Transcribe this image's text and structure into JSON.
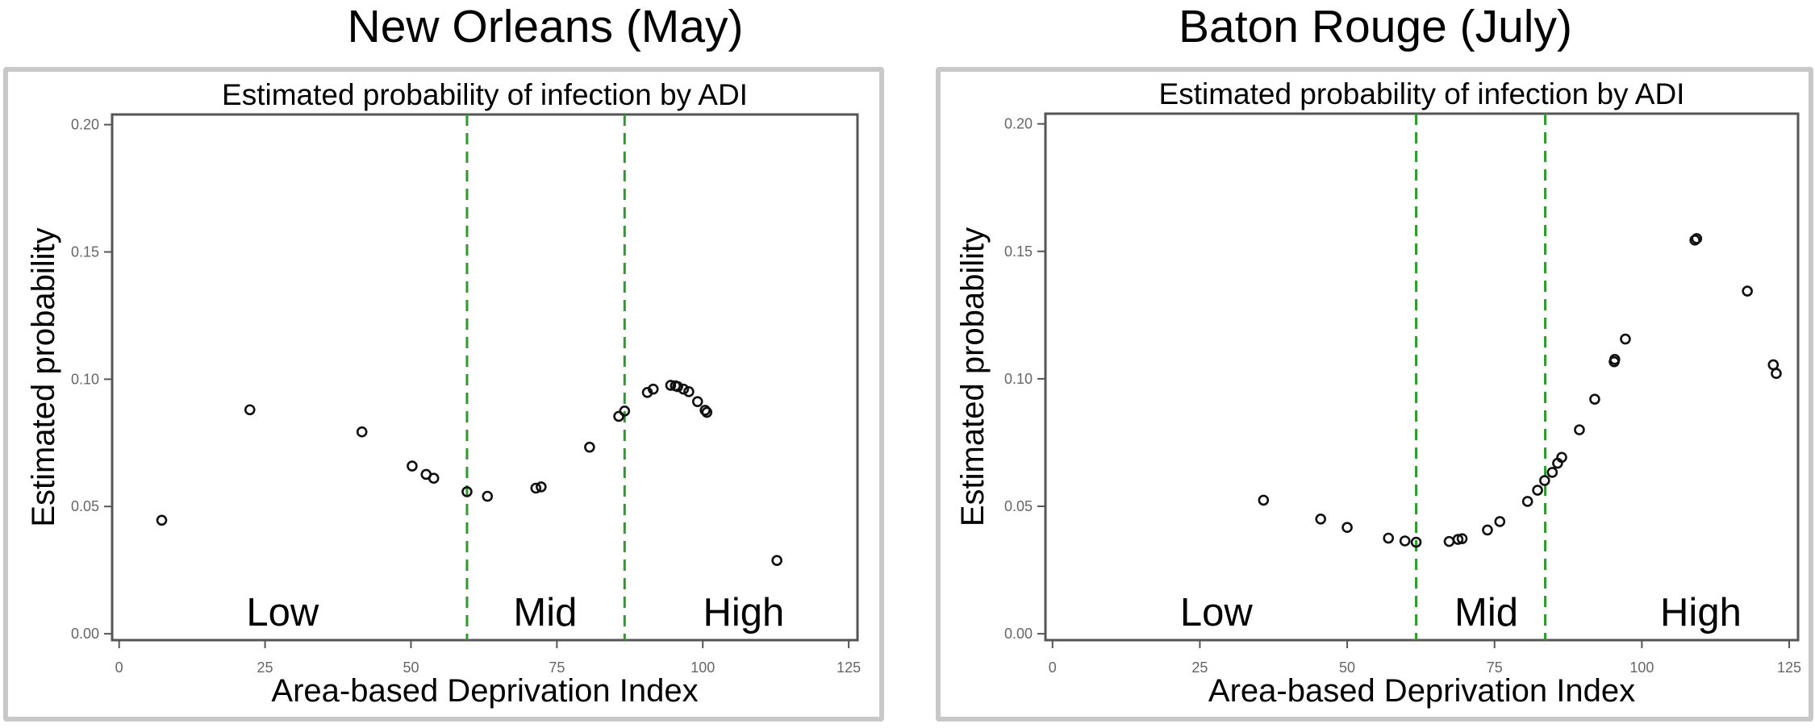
{
  "panels": [
    {
      "city_title": "New  Orleans (May)"
    },
    {
      "city_title": "Baton  Rouge (July)"
    }
  ],
  "chart_data": [
    {
      "type": "scatter",
      "title": "Estimated probability of infection by ADI",
      "xlabel": "Area-based Deprivation Index",
      "ylabel": "Estimated probability",
      "xlim": [
        -1.2,
        126.5
      ],
      "ylim": [
        -0.0025,
        0.204
      ],
      "xticks": [
        "0",
        "25",
        "50",
        "75",
        "100",
        "125"
      ],
      "xtick_values": [
        0,
        25,
        50,
        75,
        100,
        125
      ],
      "yticks": [
        "0.00",
        "0.05",
        "0.10",
        "0.15",
        "0.20"
      ],
      "ytick_values": [
        0,
        0.05,
        0.1,
        0.15,
        0.2
      ],
      "grid": false,
      "cutoffs": [
        59.6,
        86.6
      ],
      "regions": [
        {
          "label": "Low",
          "x": 28
        },
        {
          "label": "Mid",
          "x": 73
        },
        {
          "label": "High",
          "x": 107
        }
      ],
      "points": [
        [
          7.3,
          0.0446
        ],
        [
          22.4,
          0.088
        ],
        [
          41.6,
          0.0793
        ],
        [
          50.2,
          0.0659
        ],
        [
          52.6,
          0.0626
        ],
        [
          53.9,
          0.0611
        ],
        [
          59.6,
          0.0558
        ],
        [
          63.1,
          0.054
        ],
        [
          71.4,
          0.0572
        ],
        [
          72.3,
          0.0577
        ],
        [
          80.6,
          0.0733
        ],
        [
          85.6,
          0.0854
        ],
        [
          86.6,
          0.0875
        ],
        [
          90.5,
          0.0948
        ],
        [
          91.5,
          0.0961
        ],
        [
          94.5,
          0.0976
        ],
        [
          95.3,
          0.0974
        ],
        [
          95.7,
          0.0971
        ],
        [
          96.7,
          0.0961
        ],
        [
          97.6,
          0.0951
        ],
        [
          99.1,
          0.0912
        ],
        [
          100.4,
          0.0878
        ],
        [
          100.7,
          0.087
        ],
        [
          112.7,
          0.0288
        ]
      ]
    },
    {
      "type": "scatter",
      "title": "Estimated probability of infection by ADI",
      "xlabel": "Area-based Deprivation Index",
      "ylabel": "Estimated probability",
      "xlim": [
        -1.2,
        126.5
      ],
      "ylim": [
        -0.0025,
        0.204
      ],
      "xticks": [
        "0",
        "25",
        "50",
        "75",
        "100",
        "125"
      ],
      "xtick_values": [
        0,
        25,
        50,
        75,
        100,
        125
      ],
      "yticks": [
        "0.00",
        "0.05",
        "0.10",
        "0.15",
        "0.20"
      ],
      "ytick_values": [
        0,
        0.05,
        0.1,
        0.15,
        0.2
      ],
      "grid": false,
      "cutoffs": [
        61.7,
        83.6
      ],
      "regions": [
        {
          "label": "Low",
          "x": 27.8
        },
        {
          "label": "Mid",
          "x": 73.6
        },
        {
          "label": "High",
          "x": 110
        }
      ],
      "points": [
        [
          35.8,
          0.0524
        ],
        [
          45.5,
          0.045
        ],
        [
          50.0,
          0.0417
        ],
        [
          57.0,
          0.0375
        ],
        [
          59.8,
          0.0364
        ],
        [
          61.7,
          0.0359
        ],
        [
          67.3,
          0.0362
        ],
        [
          68.8,
          0.037
        ],
        [
          69.5,
          0.0373
        ],
        [
          73.8,
          0.0407
        ],
        [
          75.9,
          0.044
        ],
        [
          80.6,
          0.0519
        ],
        [
          82.3,
          0.0563
        ],
        [
          83.5,
          0.0601
        ],
        [
          84.8,
          0.0633
        ],
        [
          85.7,
          0.0669
        ],
        [
          86.4,
          0.0692
        ],
        [
          89.4,
          0.08
        ],
        [
          92.0,
          0.092
        ],
        [
          95.3,
          0.1067
        ],
        [
          95.4,
          0.1076
        ],
        [
          97.2,
          0.1156
        ],
        [
          109.0,
          0.1544
        ],
        [
          109.3,
          0.155
        ],
        [
          117.9,
          0.1344
        ],
        [
          122.3,
          0.1055
        ],
        [
          122.8,
          0.1021
        ]
      ]
    }
  ],
  "colors": {
    "cutoff": "#2e9a2e",
    "frame": "#555555",
    "panel_border": "#c8c8c8",
    "tick_text": "#666666"
  }
}
